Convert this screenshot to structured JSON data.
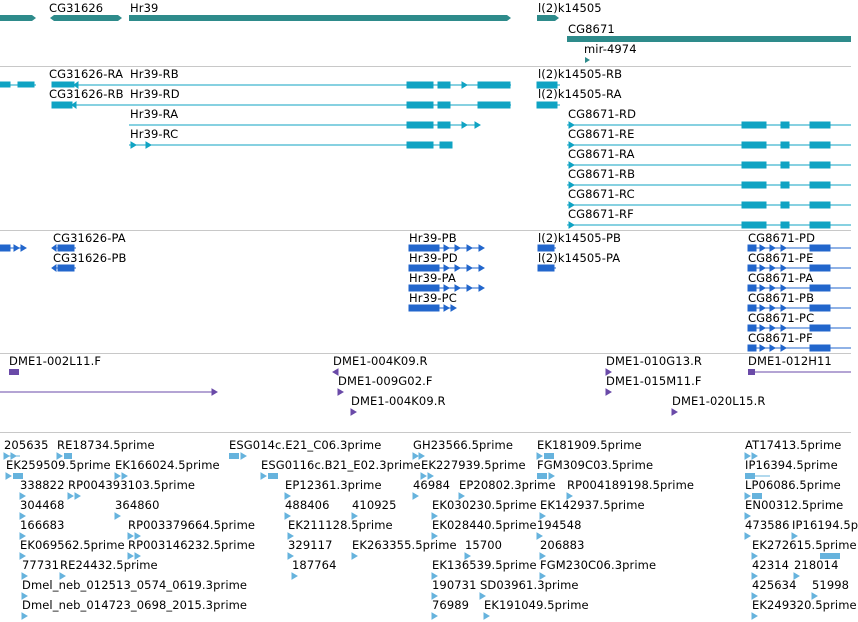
{
  "colors": {
    "gene": "#2e8b8b",
    "transcript": "#0fa3c3",
    "protein": "#2266cc",
    "clone": "#6a4aa8",
    "est": "#66b3dd",
    "separator": "#c8c8c8"
  },
  "tracks": {
    "genes": {
      "name": "genes-track",
      "labels": [
        {
          "id": "gene-CG31626",
          "text": "CG31626"
        },
        {
          "id": "gene-Hr39",
          "text": "Hr39"
        },
        {
          "id": "gene-l2k14505",
          "text": "l(2)k14505"
        },
        {
          "id": "gene-CG8671",
          "text": "CG8671"
        },
        {
          "id": "gene-mir4974",
          "text": "mir-4974"
        }
      ]
    },
    "transcripts": {
      "name": "transcripts-track",
      "labels": [
        {
          "id": "tx-CG31626-RA",
          "text": "CG31626-RA"
        },
        {
          "id": "tx-Hr39-RB",
          "text": "Hr39-RB"
        },
        {
          "id": "tx-CG31626-RB",
          "text": "CG31626-RB"
        },
        {
          "id": "tx-Hr39-RD",
          "text": "Hr39-RD"
        },
        {
          "id": "tx-Hr39-RA",
          "text": "Hr39-RA"
        },
        {
          "id": "tx-Hr39-RC",
          "text": "Hr39-RC"
        },
        {
          "id": "tx-l2k14505-RB",
          "text": "l(2)k14505-RB"
        },
        {
          "id": "tx-l2k14505-RA",
          "text": "l(2)k14505-RA"
        },
        {
          "id": "tx-CG8671-RD",
          "text": "CG8671-RD"
        },
        {
          "id": "tx-CG8671-RE",
          "text": "CG8671-RE"
        },
        {
          "id": "tx-CG8671-RA",
          "text": "CG8671-RA"
        },
        {
          "id": "tx-CG8671-RB",
          "text": "CG8671-RB"
        },
        {
          "id": "tx-CG8671-RC",
          "text": "CG8671-RC"
        },
        {
          "id": "tx-CG8671-RF",
          "text": "CG8671-RF"
        }
      ]
    },
    "proteins": {
      "name": "proteins-track",
      "labels": [
        {
          "id": "pr-CG31626-PA",
          "text": "CG31626-PA"
        },
        {
          "id": "pr-CG31626-PB",
          "text": "CG31626-PB"
        },
        {
          "id": "pr-Hr39-PB",
          "text": "Hr39-PB"
        },
        {
          "id": "pr-Hr39-PD",
          "text": "Hr39-PD"
        },
        {
          "id": "pr-Hr39-PA",
          "text": "Hr39-PA"
        },
        {
          "id": "pr-Hr39-PC",
          "text": "Hr39-PC"
        },
        {
          "id": "pr-l2k14505-PB",
          "text": "l(2)k14505-PB"
        },
        {
          "id": "pr-l2k14505-PA",
          "text": "l(2)k14505-PA"
        },
        {
          "id": "pr-CG8671-PD",
          "text": "CG8671-PD"
        },
        {
          "id": "pr-CG8671-PE",
          "text": "CG8671-PE"
        },
        {
          "id": "pr-CG8671-PA",
          "text": "CG8671-PA"
        },
        {
          "id": "pr-CG8671-PB",
          "text": "CG8671-PB"
        },
        {
          "id": "pr-CG8671-PC",
          "text": "CG8671-PC"
        },
        {
          "id": "pr-CG8671-PF",
          "text": "CG8671-PF"
        }
      ]
    },
    "clones": {
      "name": "clones-track",
      "labels": [
        {
          "id": "cl-DME1-002L11F",
          "text": "DME1-002L11.F"
        },
        {
          "id": "cl-DME1-004K09R-a",
          "text": "DME1-004K09.R"
        },
        {
          "id": "cl-DME1-009G02F",
          "text": "DME1-009G02.F"
        },
        {
          "id": "cl-DME1-004K09R-b",
          "text": "DME1-004K09.R"
        },
        {
          "id": "cl-DME1-010G13R",
          "text": "DME1-010G13.R"
        },
        {
          "id": "cl-DME1-015M11F",
          "text": "DME1-015M11.F"
        },
        {
          "id": "cl-DME1-020L15R",
          "text": "DME1-020L15.R"
        },
        {
          "id": "cl-DME1-012H11",
          "text": "DME1-012H11"
        }
      ]
    },
    "ests": {
      "name": "ests-track",
      "labels": [
        {
          "id": "est-205635",
          "text": "205635"
        },
        {
          "id": "est-RE18734",
          "text": "RE18734.5prime"
        },
        {
          "id": "est-ESG014c",
          "text": "ESG014c.E21_C06.3prime"
        },
        {
          "id": "est-GH23566",
          "text": "GH23566.5prime"
        },
        {
          "id": "est-EK181909",
          "text": "EK181909.5prime"
        },
        {
          "id": "est-AT17413",
          "text": "AT17413.5prime"
        },
        {
          "id": "est-EK259509",
          "text": "EK259509.5prime"
        },
        {
          "id": "est-EK166024",
          "text": "EK166024.5prime"
        },
        {
          "id": "est-ESG0116c",
          "text": "ESG0116c.B21_E02.3prime"
        },
        {
          "id": "est-EK227939",
          "text": "EK227939.5prime"
        },
        {
          "id": "est-FGM309C03",
          "text": "FGM309C03.5prime"
        },
        {
          "id": "est-IP16394",
          "text": "IP16394.5prime"
        },
        {
          "id": "est-338822",
          "text": "338822"
        },
        {
          "id": "est-RP004393103",
          "text": "RP004393103.5prime"
        },
        {
          "id": "est-EP12361",
          "text": "EP12361.3prime"
        },
        {
          "id": "est-46984",
          "text": "46984"
        },
        {
          "id": "est-EP20802",
          "text": "EP20802.3prime"
        },
        {
          "id": "est-RP004189198",
          "text": "RP004189198.5prime"
        },
        {
          "id": "est-LP06086",
          "text": "LP06086.5prime"
        },
        {
          "id": "est-304468",
          "text": "304468"
        },
        {
          "id": "est-364860",
          "text": "364860"
        },
        {
          "id": "est-488406",
          "text": "488406"
        },
        {
          "id": "est-410925",
          "text": "410925"
        },
        {
          "id": "est-EK030230",
          "text": "EK030230.5prime"
        },
        {
          "id": "est-EK142937",
          "text": "EK142937.5prime"
        },
        {
          "id": "est-EN00312",
          "text": "EN00312.5prime"
        },
        {
          "id": "est-166683",
          "text": "166683"
        },
        {
          "id": "est-RP003379664",
          "text": "RP003379664.5prime"
        },
        {
          "id": "est-EK211128",
          "text": "EK211128.5prime"
        },
        {
          "id": "est-EK028440",
          "text": "EK028440.5prime"
        },
        {
          "id": "est-194548",
          "text": "194548"
        },
        {
          "id": "est-473586",
          "text": "473586"
        },
        {
          "id": "est-IP16194",
          "text": "IP16194.5p"
        },
        {
          "id": "est-EK069562",
          "text": "EK069562.5prime"
        },
        {
          "id": "est-RP003146232",
          "text": "RP003146232.5prime"
        },
        {
          "id": "est-329117",
          "text": "329117"
        },
        {
          "id": "est-EK263355",
          "text": "EK263355.5prime"
        },
        {
          "id": "est-15700",
          "text": "15700"
        },
        {
          "id": "est-206883",
          "text": "206883"
        },
        {
          "id": "est-EK272615",
          "text": "EK272615.5prime"
        },
        {
          "id": "est-77731",
          "text": "77731"
        },
        {
          "id": "est-RE24432",
          "text": "RE24432.5prime"
        },
        {
          "id": "est-187764",
          "text": "187764"
        },
        {
          "id": "est-EK136539",
          "text": "EK136539.5prime"
        },
        {
          "id": "est-FGM230C06",
          "text": "FGM230C06.3prime"
        },
        {
          "id": "est-42314",
          "text": "42314"
        },
        {
          "id": "est-218014",
          "text": "218014"
        },
        {
          "id": "est-Dmel-012513",
          "text": "Dmel_neb_012513_0574_0619.3prime"
        },
        {
          "id": "est-190731",
          "text": "190731"
        },
        {
          "id": "est-SD03961",
          "text": "SD03961.3prime"
        },
        {
          "id": "est-425634",
          "text": "425634"
        },
        {
          "id": "est-51998",
          "text": "51998"
        },
        {
          "id": "est-Dmel-014723",
          "text": "Dmel_neb_014723_0698_2015.3prime"
        },
        {
          "id": "est-76989",
          "text": "76989"
        },
        {
          "id": "est-EK191049",
          "text": "EK191049.5prime"
        },
        {
          "id": "est-EK249320",
          "text": "EK249320.5prime"
        }
      ]
    }
  }
}
